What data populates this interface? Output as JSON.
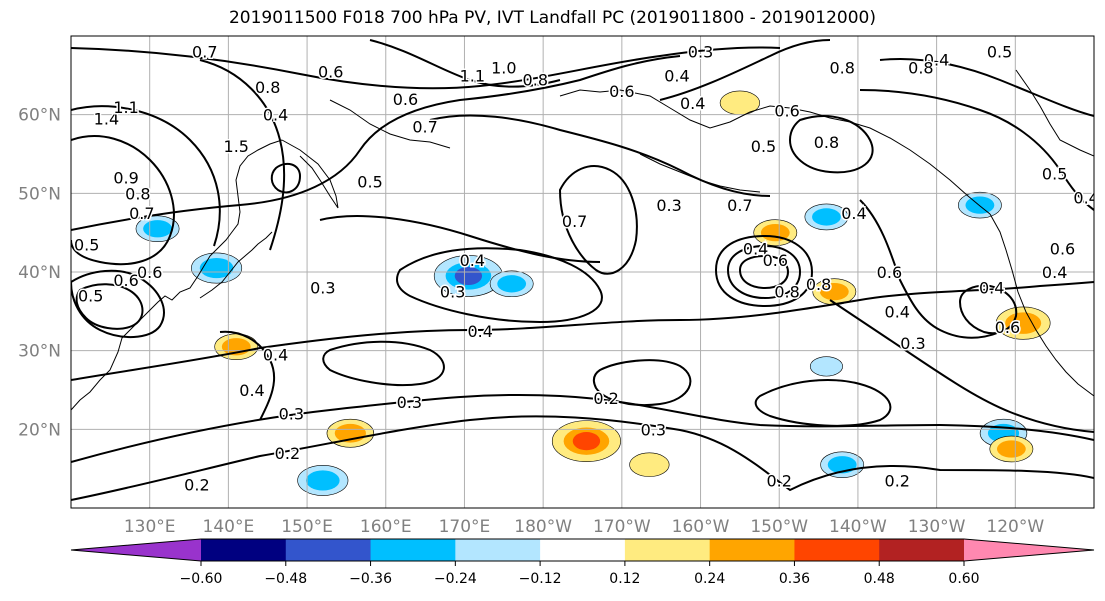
{
  "chart_data": {
    "type": "contour",
    "title": "2019011500 F018 700 hPa PV, IVT Landfall PC (2019011800 - 2019012000)",
    "map": {
      "lon_range": [
        120,
        250
      ],
      "lat_range": [
        10,
        70
      ],
      "lon_ticks": [
        {
          "lon": 130,
          "label": "130°E"
        },
        {
          "lon": 140,
          "label": "140°E"
        },
        {
          "lon": 150,
          "label": "150°E"
        },
        {
          "lon": 160,
          "label": "160°E"
        },
        {
          "lon": 170,
          "label": "170°E"
        },
        {
          "lon": 180,
          "label": "180°W"
        },
        {
          "lon": 190,
          "label": "170°W"
        },
        {
          "lon": 200,
          "label": "160°W"
        },
        {
          "lon": 210,
          "label": "150°W"
        },
        {
          "lon": 220,
          "label": "140°W"
        },
        {
          "lon": 230,
          "label": "130°W"
        },
        {
          "lon": 240,
          "label": "120°W"
        }
      ],
      "lat_ticks": [
        {
          "lat": 20,
          "label": "20°N"
        },
        {
          "lat": 30,
          "label": "30°N"
        },
        {
          "lat": 40,
          "label": "40°N"
        },
        {
          "lat": 50,
          "label": "50°N"
        },
        {
          "lat": 60,
          "label": "60°N"
        }
      ],
      "grid": true
    },
    "colorbar": {
      "orientation": "horizontal",
      "location": "bottom",
      "extend": "both",
      "bounds": [
        -0.72,
        -0.6,
        -0.48,
        -0.36,
        -0.24,
        -0.12,
        0.12,
        0.24,
        0.36,
        0.48,
        0.6,
        0.72
      ],
      "colors": [
        "#9933cc",
        "#000080",
        "#3355cc",
        "#00bfff",
        "#b3e6ff",
        "#ffffff",
        "#ffeb80",
        "#ffa500",
        "#ff4500",
        "#b22222",
        "#ff88b0"
      ],
      "tick_labels": [
        {
          "value": -0.6,
          "label": "−0.60"
        },
        {
          "value": -0.48,
          "label": "−0.48"
        },
        {
          "value": -0.36,
          "label": "−0.36"
        },
        {
          "value": -0.24,
          "label": "−0.24"
        },
        {
          "value": -0.12,
          "label": "−0.12"
        },
        {
          "value": 0.12,
          "label": "0.12"
        },
        {
          "value": 0.24,
          "label": "0.24"
        },
        {
          "value": 0.36,
          "label": "0.36"
        },
        {
          "value": 0.48,
          "label": "0.48"
        },
        {
          "value": 0.6,
          "label": "0.60"
        }
      ]
    },
    "filled_anomalies": [
      {
        "lon": 170.5,
        "lat": 39.5,
        "value": -0.4
      },
      {
        "lon": 176,
        "lat": 38.5,
        "value": -0.26
      },
      {
        "lon": 138.5,
        "lat": 40.5,
        "value": -0.3
      },
      {
        "lon": 131,
        "lat": 45.5,
        "value": -0.26
      },
      {
        "lon": 216,
        "lat": 47,
        "value": -0.26
      },
      {
        "lon": 235.5,
        "lat": 48.5,
        "value": -0.26
      },
      {
        "lon": 238.5,
        "lat": 19.5,
        "value": -0.28
      },
      {
        "lon": 218,
        "lat": 15.5,
        "value": -0.26
      },
      {
        "lon": 152,
        "lat": 13.5,
        "value": -0.3
      },
      {
        "lon": 216,
        "lat": 28,
        "value": -0.2
      },
      {
        "lon": 217,
        "lat": 37.5,
        "value": 0.26
      },
      {
        "lon": 209.5,
        "lat": 45,
        "value": 0.26
      },
      {
        "lon": 241,
        "lat": 33.5,
        "value": 0.32
      },
      {
        "lon": 185.5,
        "lat": 18.5,
        "value": 0.4
      },
      {
        "lon": 155.5,
        "lat": 19.5,
        "value": 0.28
      },
      {
        "lon": 141,
        "lat": 30.5,
        "value": 0.26
      },
      {
        "lon": 239.5,
        "lat": 17.5,
        "value": 0.26
      },
      {
        "lon": 193.5,
        "lat": 15.5,
        "value": 0.24
      },
      {
        "lon": 205,
        "lat": 61.5,
        "value": 0.24
      }
    ],
    "contour_labels": [
      {
        "lon": 137,
        "lat": 68,
        "text": "0.7"
      },
      {
        "lon": 153,
        "lat": 65.5,
        "text": "0.6"
      },
      {
        "lon": 162.5,
        "lat": 62,
        "text": "0.6"
      },
      {
        "lon": 146,
        "lat": 60,
        "text": "0.4"
      },
      {
        "lon": 145,
        "lat": 63.5,
        "text": "0.8"
      },
      {
        "lon": 175,
        "lat": 66,
        "text": "1.0"
      },
      {
        "lon": 171,
        "lat": 65,
        "text": "1.1"
      },
      {
        "lon": 179,
        "lat": 64.5,
        "text": "0.8"
      },
      {
        "lon": 165,
        "lat": 58.5,
        "text": "0.7"
      },
      {
        "lon": 124.5,
        "lat": 59.5,
        "text": "1.4"
      },
      {
        "lon": 127,
        "lat": 61,
        "text": "1.1"
      },
      {
        "lon": 141,
        "lat": 56,
        "text": "1.5"
      },
      {
        "lon": 127,
        "lat": 52,
        "text": "0.9"
      },
      {
        "lon": 128.5,
        "lat": 50,
        "text": "0.8"
      },
      {
        "lon": 129,
        "lat": 47.5,
        "text": "0.7"
      },
      {
        "lon": 122,
        "lat": 43.5,
        "text": "0.5"
      },
      {
        "lon": 130,
        "lat": 40,
        "text": "0.6"
      },
      {
        "lon": 122.5,
        "lat": 37,
        "text": "0.5"
      },
      {
        "lon": 127,
        "lat": 39,
        "text": "0.6"
      },
      {
        "lon": 158,
        "lat": 51.5,
        "text": "0.5"
      },
      {
        "lon": 152,
        "lat": 38,
        "text": "0.3"
      },
      {
        "lon": 171,
        "lat": 41.5,
        "text": "0.4"
      },
      {
        "lon": 168.5,
        "lat": 37.5,
        "text": "0.3"
      },
      {
        "lon": 172,
        "lat": 32.5,
        "text": "0.4"
      },
      {
        "lon": 146,
        "lat": 29.5,
        "text": "0.4"
      },
      {
        "lon": 143,
        "lat": 25,
        "text": "0.4"
      },
      {
        "lon": 148,
        "lat": 22,
        "text": "0.3"
      },
      {
        "lon": 147.5,
        "lat": 17,
        "text": "0.2"
      },
      {
        "lon": 136,
        "lat": 13,
        "text": "0.2"
      },
      {
        "lon": 163,
        "lat": 23.5,
        "text": "0.3"
      },
      {
        "lon": 188,
        "lat": 24,
        "text": "0.2"
      },
      {
        "lon": 184,
        "lat": 46.5,
        "text": "0.7"
      },
      {
        "lon": 196,
        "lat": 48.5,
        "text": "0.3"
      },
      {
        "lon": 205,
        "lat": 48.5,
        "text": "0.7"
      },
      {
        "lon": 207,
        "lat": 43,
        "text": "0.4"
      },
      {
        "lon": 209.5,
        "lat": 41.5,
        "text": "0.6"
      },
      {
        "lon": 211,
        "lat": 37.5,
        "text": "0.8"
      },
      {
        "lon": 215,
        "lat": 38.5,
        "text": "0.8"
      },
      {
        "lon": 190,
        "lat": 63,
        "text": "0.6"
      },
      {
        "lon": 200,
        "lat": 68,
        "text": "0.3"
      },
      {
        "lon": 199,
        "lat": 61.5,
        "text": "0.4"
      },
      {
        "lon": 197,
        "lat": 65,
        "text": "0.4"
      },
      {
        "lon": 208,
        "lat": 56,
        "text": "0.5"
      },
      {
        "lon": 211,
        "lat": 60.5,
        "text": "0.6"
      },
      {
        "lon": 216,
        "lat": 56.5,
        "text": "0.8"
      },
      {
        "lon": 218,
        "lat": 66,
        "text": "0.8"
      },
      {
        "lon": 219.5,
        "lat": 47.5,
        "text": "0.4"
      },
      {
        "lon": 224,
        "lat": 40,
        "text": "0.6"
      },
      {
        "lon": 225,
        "lat": 35,
        "text": "0.4"
      },
      {
        "lon": 227,
        "lat": 31,
        "text": "0.3"
      },
      {
        "lon": 194,
        "lat": 20,
        "text": "0.3"
      },
      {
        "lon": 210,
        "lat": 13.5,
        "text": "0.2"
      },
      {
        "lon": 225,
        "lat": 13.5,
        "text": "0.2"
      },
      {
        "lon": 230,
        "lat": 67,
        "text": "0.4"
      },
      {
        "lon": 228,
        "lat": 66,
        "text": "0.8"
      },
      {
        "lon": 238,
        "lat": 68,
        "text": "0.5"
      },
      {
        "lon": 245,
        "lat": 52.5,
        "text": "0.5"
      },
      {
        "lon": 249,
        "lat": 49.5,
        "text": "0.4"
      },
      {
        "lon": 246,
        "lat": 43,
        "text": "0.6"
      },
      {
        "lon": 245,
        "lat": 40,
        "text": "0.4"
      },
      {
        "lon": 237,
        "lat": 38,
        "text": "0.4"
      },
      {
        "lon": 239,
        "lat": 33,
        "text": "0.6"
      }
    ]
  }
}
